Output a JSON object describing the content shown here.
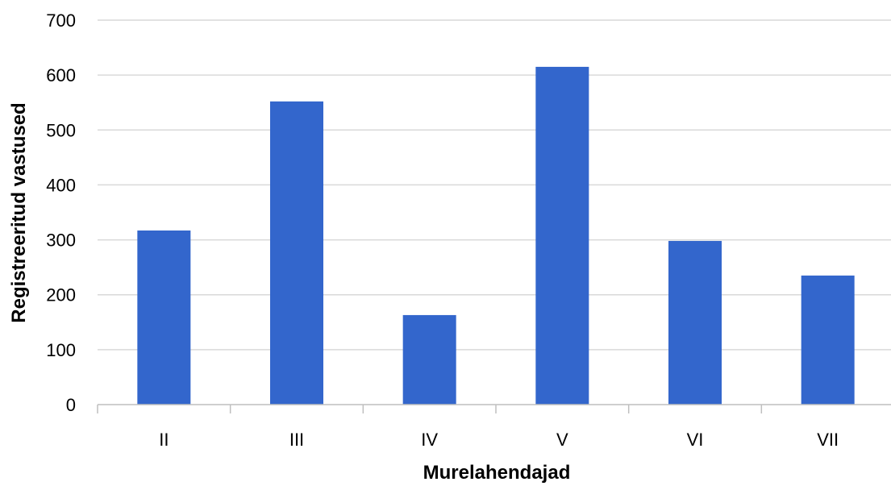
{
  "chart_data": {
    "type": "bar",
    "categories": [
      "II",
      "III",
      "IV",
      "V",
      "VI",
      "VII"
    ],
    "values": [
      317,
      552,
      163,
      615,
      298,
      235
    ],
    "xlabel": "Murelahendajad",
    "ylabel": "Registreeritud vastused",
    "ylim": [
      0,
      700
    ],
    "yticks": [
      "0",
      "100",
      "200",
      "300",
      "400",
      "500",
      "600",
      "700"
    ],
    "grid": true,
    "legend": "none",
    "colors": {
      "bar": "#3366cc",
      "grid": "#d9d9d9",
      "axis": "#bfbfbf"
    }
  }
}
